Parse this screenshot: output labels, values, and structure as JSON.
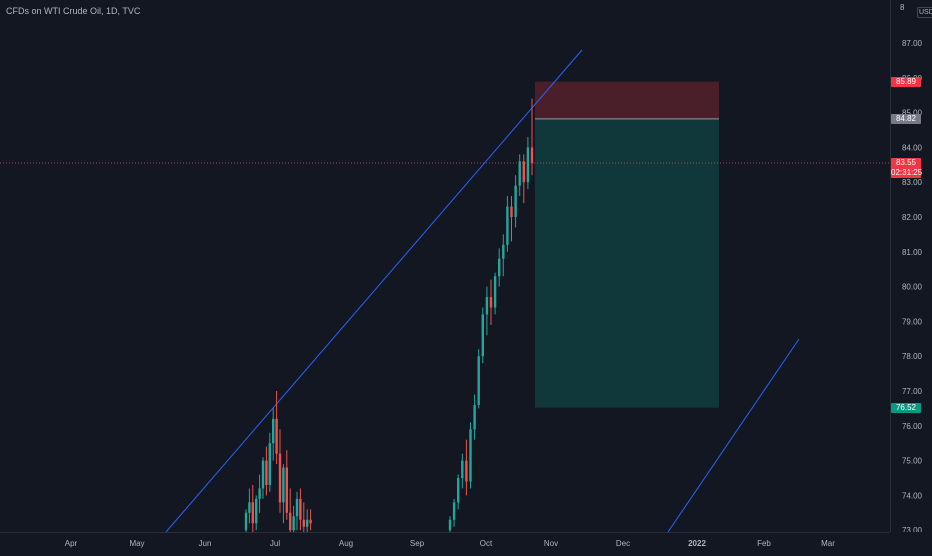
{
  "legend": {
    "symbol": "CFDs on WTI Crude Oil",
    "interval": "1D",
    "source": "TVC"
  },
  "price_scale": {
    "currency": "USD",
    "top_cut_label": "8",
    "ticks": [
      "87.00",
      "86.00",
      "85.00",
      "84.00",
      "83.00",
      "82.00",
      "81.00",
      "80.00",
      "79.00",
      "78.00",
      "77.00",
      "76.00",
      "75.00",
      "74.00",
      "73.00"
    ],
    "tick_values": [
      87,
      86,
      85,
      84,
      83,
      82,
      81,
      80,
      79,
      78,
      77,
      76,
      75,
      74,
      73
    ]
  },
  "time_scale": {
    "labels": [
      "Apr",
      "May",
      "Jun",
      "Jul",
      "Aug",
      "Sep",
      "Oct",
      "Nov",
      "Dec",
      "2022",
      "Feb",
      "Mar"
    ],
    "bold_label": "2022"
  },
  "badges": {
    "stop_loss": {
      "price": "85.89",
      "value": 85.89,
      "color": "#f23645"
    },
    "entry": {
      "price": "84.82",
      "value": 84.82,
      "color": "#787b86"
    },
    "last": {
      "price": "83.55",
      "countdown": "02:31:25",
      "value": 83.55,
      "color": "#f23645"
    },
    "take_profit": {
      "price": "76.52",
      "value": 76.52,
      "color": "#089981"
    }
  },
  "colors": {
    "background": "#131722",
    "up": "#26a69a",
    "down": "#ef5350",
    "trendline": "#2962ff",
    "stop_zone": "rgba(242,54,69,0.25)",
    "profit_zone": "rgba(8,153,129,0.25)"
  },
  "chart_data": {
    "type": "candlestick",
    "ylim": [
      72.8,
      88
    ],
    "date_range": [
      "Mar",
      "Mar"
    ],
    "candles": [
      [
        73.0,
        73.6,
        72.8,
        73.5
      ],
      [
        73.5,
        74.2,
        73.2,
        73.8
      ],
      [
        73.8,
        74.3,
        72.9,
        73.2
      ],
      [
        73.2,
        74.0,
        73.0,
        73.9
      ],
      [
        73.9,
        74.6,
        73.5,
        74.2
      ],
      [
        74.2,
        75.1,
        73.9,
        75.0
      ],
      [
        75.0,
        75.4,
        74.0,
        74.3
      ],
      [
        74.3,
        75.8,
        74.1,
        75.5
      ],
      [
        75.5,
        76.5,
        75.0,
        76.2
      ],
      [
        76.2,
        77.0,
        74.9,
        75.2
      ],
      [
        75.2,
        75.9,
        73.5,
        73.8
      ],
      [
        73.8,
        74.9,
        73.2,
        74.8
      ],
      [
        74.8,
        75.3,
        73.3,
        73.5
      ],
      [
        73.5,
        74.2,
        72.8,
        73.0
      ],
      [
        73.0,
        73.7,
        72.8,
        73.4
      ],
      [
        73.4,
        74.1,
        73.0,
        73.9
      ],
      [
        73.9,
        74.2,
        73.0,
        73.3
      ],
      [
        73.3,
        73.8,
        72.8,
        73.1
      ],
      [
        73.1,
        73.6,
        72.9,
        73.3
      ],
      [
        73.3,
        73.6,
        73.0,
        73.2
      ],
      [
        73.0,
        73.4,
        72.8,
        73.3
      ],
      [
        73.3,
        73.9,
        73.1,
        73.8
      ],
      [
        73.8,
        74.6,
        73.6,
        74.5
      ],
      [
        74.5,
        75.2,
        74.2,
        75.0
      ],
      [
        75.0,
        75.6,
        74.0,
        74.4
      ],
      [
        74.4,
        76.1,
        74.2,
        75.9
      ],
      [
        75.9,
        76.9,
        75.6,
        76.6
      ],
      [
        76.6,
        78.2,
        76.5,
        78.0
      ],
      [
        78.0,
        79.4,
        77.8,
        79.2
      ],
      [
        79.2,
        80.0,
        78.6,
        79.7
      ],
      [
        79.7,
        80.2,
        78.9,
        79.4
      ],
      [
        79.4,
        80.4,
        79.2,
        80.3
      ],
      [
        80.3,
        81.1,
        80.0,
        80.8
      ],
      [
        80.8,
        81.5,
        80.3,
        81.2
      ],
      [
        81.2,
        82.6,
        81.0,
        82.3
      ],
      [
        82.3,
        82.6,
        81.3,
        82.0
      ],
      [
        82.0,
        83.2,
        81.7,
        82.9
      ],
      [
        82.9,
        83.8,
        82.6,
        83.6
      ],
      [
        83.6,
        83.8,
        82.4,
        83.0
      ],
      [
        83.0,
        84.3,
        82.8,
        84.0
      ],
      [
        84.0,
        85.4,
        83.2,
        83.55
      ]
    ]
  }
}
